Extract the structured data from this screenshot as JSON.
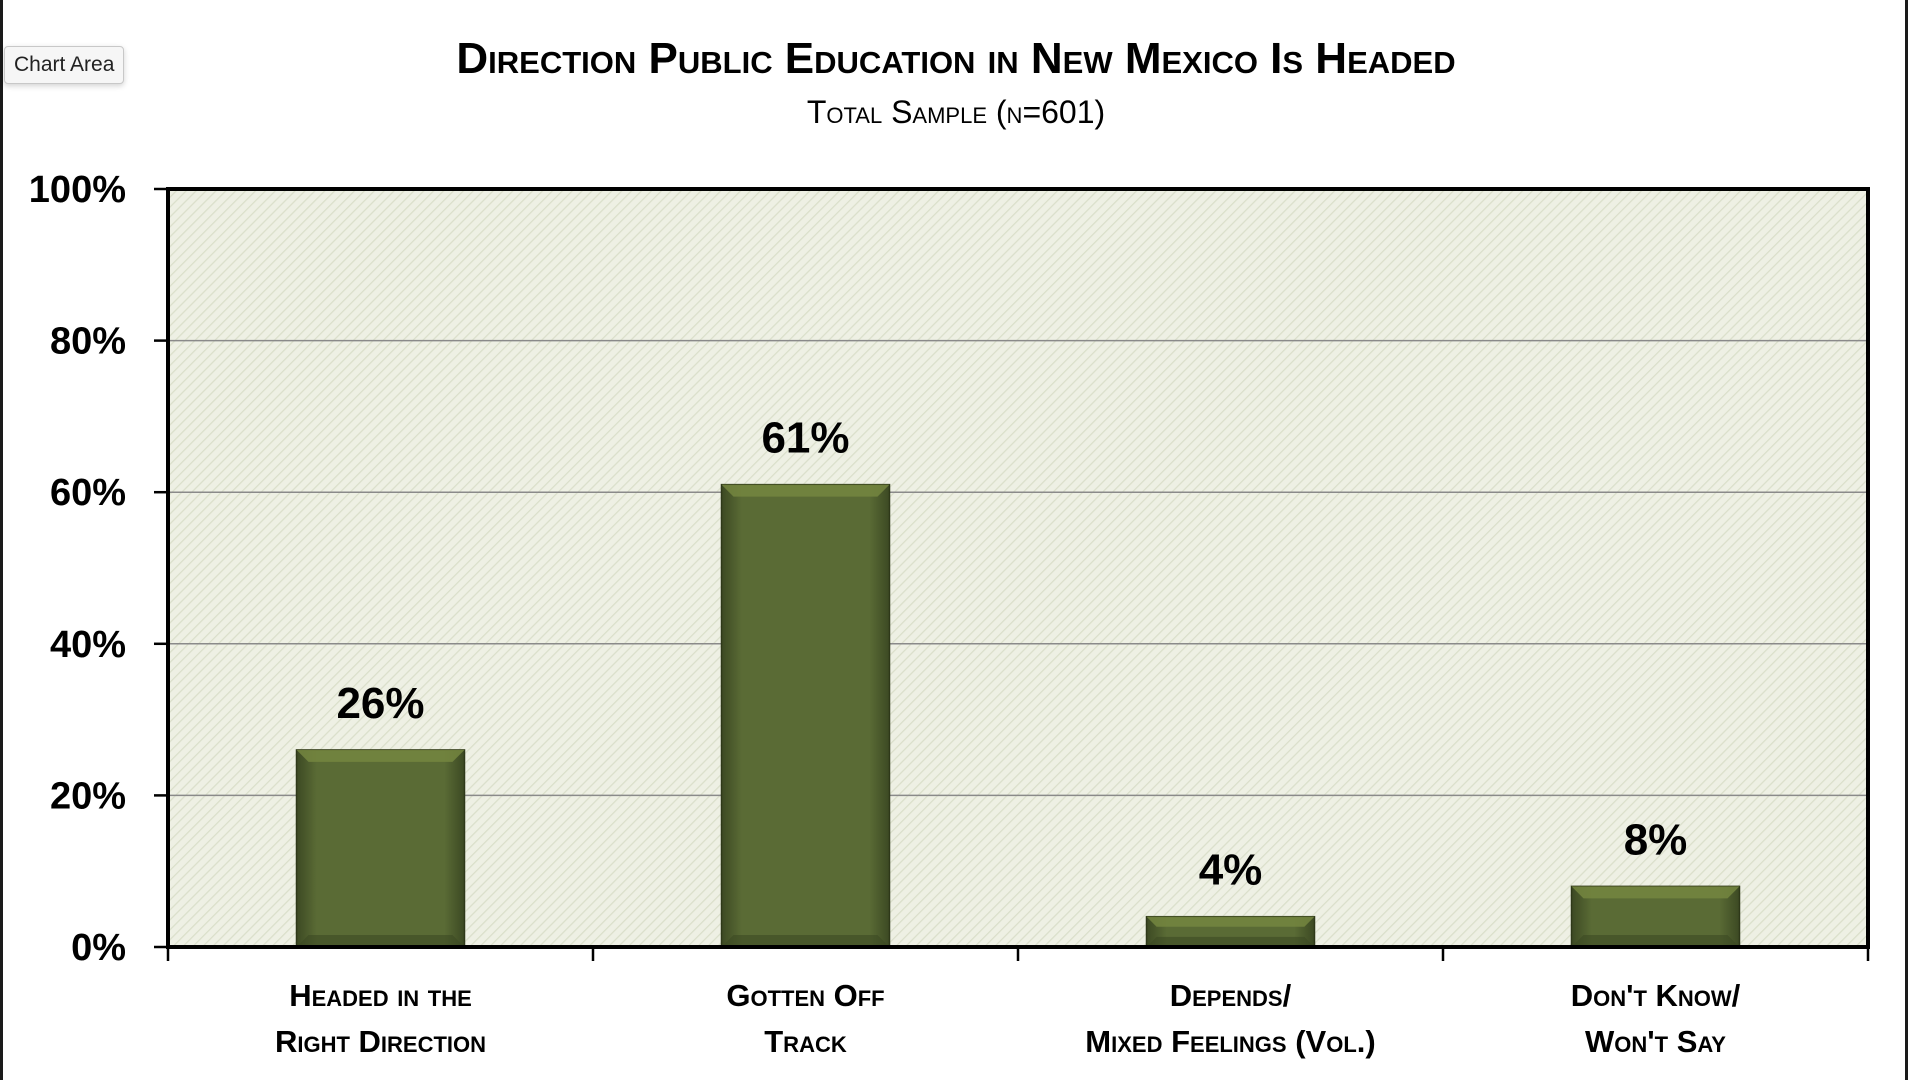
{
  "tooltip": {
    "label": "Chart Area"
  },
  "colors": {
    "bar": "#5a6b35",
    "bar_light": "#74863f",
    "bar_dark": "#3c4923",
    "plot_bg": "#eef0e4",
    "hatch": "#dadfca",
    "gridline": "#8a8a8a",
    "axis": "#000000"
  },
  "chart_data": {
    "type": "bar",
    "title": "Direction Public Education in New Mexico Is Headed",
    "subtitle": "Total Sample (n=601)",
    "categories": [
      [
        "Headed in the",
        "Right Direction"
      ],
      [
        "Gotten Off",
        "Track"
      ],
      [
        "Depends/",
        "Mixed Feelings (Vol.)"
      ],
      [
        "Don't Know/",
        "Won't Say"
      ]
    ],
    "values": [
      26,
      61,
      4,
      8
    ],
    "data_labels": [
      "26%",
      "61%",
      "4%",
      "8%"
    ],
    "ylim": [
      0,
      100
    ],
    "yticks": [
      0,
      20,
      40,
      60,
      80,
      100
    ],
    "ytick_labels": [
      "0%",
      "20%",
      "40%",
      "60%",
      "80%",
      "100%"
    ],
    "xlabel": "",
    "ylabel": "",
    "grid": true,
    "legend": "none"
  }
}
